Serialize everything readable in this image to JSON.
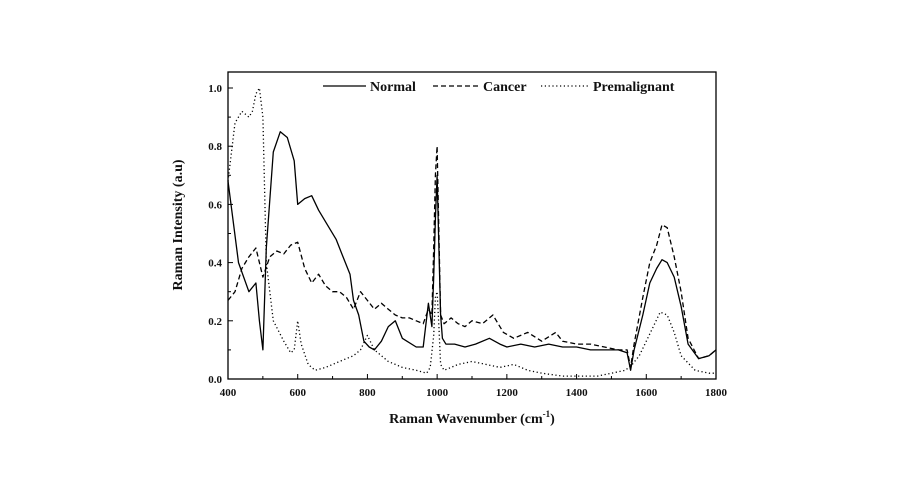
{
  "chart_data": {
    "type": "line",
    "title": "",
    "xlabel": "Raman Wavenumber (cm",
    "xlabel_sup": "-1",
    "xlabel_close": ")",
    "ylabel": "Raman Intensity (a.u)",
    "xlim": [
      400,
      1800
    ],
    "ylim": [
      0,
      1.05
    ],
    "xticks": [
      400,
      600,
      800,
      1000,
      1200,
      1400,
      1600,
      1800
    ],
    "xtick_labels": [
      "400",
      "600",
      "800",
      "1000",
      "1200",
      "1400",
      "1600",
      "1800"
    ],
    "yticks": [
      0.0,
      0.2,
      0.4,
      0.6,
      0.8,
      1.0
    ],
    "ytick_labels": [
      "0.0",
      "0.2",
      "0.4",
      "0.6",
      "0.8",
      "1.0"
    ],
    "grid": false,
    "legend_position": "top",
    "series": [
      {
        "name": "Normal",
        "dash": "solid",
        "color": "#000000",
        "x": [
          400,
          430,
          460,
          480,
          490,
          500,
          510,
          530,
          550,
          570,
          590,
          600,
          620,
          640,
          660,
          690,
          710,
          730,
          750,
          760,
          775,
          790,
          805,
          820,
          840,
          860,
          880,
          900,
          940,
          960,
          975,
          985,
          990,
          995,
          1000,
          1005,
          1010,
          1015,
          1025,
          1050,
          1080,
          1110,
          1150,
          1180,
          1200,
          1240,
          1280,
          1320,
          1360,
          1400,
          1440,
          1480,
          1520,
          1545,
          1555,
          1565,
          1590,
          1610,
          1630,
          1645,
          1660,
          1680,
          1700,
          1720,
          1750,
          1780,
          1800
        ],
        "values": [
          0.68,
          0.4,
          0.3,
          0.33,
          0.2,
          0.1,
          0.45,
          0.78,
          0.85,
          0.83,
          0.75,
          0.6,
          0.62,
          0.63,
          0.58,
          0.52,
          0.48,
          0.42,
          0.36,
          0.27,
          0.22,
          0.13,
          0.11,
          0.1,
          0.13,
          0.18,
          0.2,
          0.14,
          0.11,
          0.11,
          0.26,
          0.18,
          0.35,
          0.55,
          0.7,
          0.45,
          0.22,
          0.14,
          0.12,
          0.12,
          0.11,
          0.12,
          0.14,
          0.12,
          0.11,
          0.12,
          0.11,
          0.12,
          0.11,
          0.11,
          0.1,
          0.1,
          0.1,
          0.09,
          0.03,
          0.1,
          0.22,
          0.33,
          0.38,
          0.41,
          0.4,
          0.35,
          0.25,
          0.12,
          0.07,
          0.08,
          0.1
        ]
      },
      {
        "name": "Cancer",
        "dash": "dashed",
        "color": "#000000",
        "x": [
          400,
          420,
          440,
          460,
          480,
          500,
          520,
          540,
          560,
          580,
          600,
          620,
          640,
          660,
          680,
          700,
          720,
          740,
          760,
          780,
          800,
          820,
          840,
          860,
          880,
          900,
          920,
          940,
          960,
          975,
          985,
          990,
          995,
          1000,
          1005,
          1010,
          1020,
          1040,
          1060,
          1080,
          1100,
          1130,
          1160,
          1190,
          1220,
          1260,
          1300,
          1340,
          1360,
          1400,
          1440,
          1480,
          1520,
          1545,
          1555,
          1565,
          1590,
          1610,
          1630,
          1645,
          1660,
          1680,
          1700,
          1720,
          1750,
          1780,
          1800
        ],
        "values": [
          0.27,
          0.3,
          0.38,
          0.42,
          0.45,
          0.35,
          0.42,
          0.44,
          0.43,
          0.46,
          0.47,
          0.38,
          0.33,
          0.36,
          0.32,
          0.3,
          0.3,
          0.28,
          0.24,
          0.3,
          0.27,
          0.24,
          0.26,
          0.24,
          0.22,
          0.21,
          0.21,
          0.2,
          0.19,
          0.24,
          0.22,
          0.45,
          0.7,
          0.8,
          0.5,
          0.22,
          0.19,
          0.21,
          0.19,
          0.18,
          0.2,
          0.19,
          0.22,
          0.16,
          0.14,
          0.16,
          0.13,
          0.16,
          0.13,
          0.12,
          0.12,
          0.11,
          0.1,
          0.1,
          0.04,
          0.12,
          0.28,
          0.4,
          0.46,
          0.53,
          0.52,
          0.42,
          0.3,
          0.14,
          0.07,
          0.08,
          0.1
        ]
      },
      {
        "name": "Premalignant",
        "dash": "dotted",
        "color": "#000000",
        "x": [
          400,
          410,
          420,
          440,
          460,
          470,
          480,
          490,
          500,
          510,
          530,
          560,
          580,
          590,
          600,
          610,
          630,
          650,
          680,
          720,
          760,
          780,
          800,
          820,
          840,
          860,
          880,
          900,
          940,
          970,
          980,
          990,
          995,
          1000,
          1005,
          1010,
          1020,
          1040,
          1060,
          1100,
          1140,
          1180,
          1220,
          1260,
          1300,
          1360,
          1400,
          1460,
          1500,
          1540,
          1560,
          1580,
          1600,
          1620,
          1640,
          1660,
          1680,
          1700,
          1740,
          1780,
          1800
        ],
        "values": [
          0.68,
          0.78,
          0.88,
          0.92,
          0.9,
          0.92,
          0.98,
          1.0,
          0.9,
          0.4,
          0.2,
          0.13,
          0.09,
          0.1,
          0.2,
          0.12,
          0.05,
          0.03,
          0.04,
          0.06,
          0.08,
          0.1,
          0.15,
          0.1,
          0.08,
          0.06,
          0.05,
          0.04,
          0.03,
          0.02,
          0.04,
          0.15,
          0.28,
          0.3,
          0.18,
          0.05,
          0.03,
          0.04,
          0.05,
          0.06,
          0.05,
          0.04,
          0.05,
          0.03,
          0.02,
          0.01,
          0.01,
          0.01,
          0.02,
          0.03,
          0.05,
          0.08,
          0.13,
          0.18,
          0.23,
          0.22,
          0.16,
          0.08,
          0.03,
          0.02,
          0.02
        ]
      }
    ]
  }
}
